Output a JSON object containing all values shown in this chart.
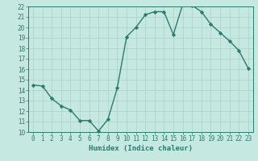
{
  "xlabel": "Humidex (Indice chaleur)",
  "x": [
    0,
    1,
    2,
    3,
    4,
    5,
    6,
    7,
    8,
    9,
    10,
    11,
    12,
    13,
    14,
    15,
    16,
    17,
    18,
    19,
    20,
    21,
    22,
    23
  ],
  "y": [
    14.5,
    14.4,
    13.2,
    12.5,
    12.1,
    11.1,
    11.1,
    10.1,
    11.2,
    14.2,
    19.1,
    20.0,
    21.2,
    21.5,
    21.5,
    19.3,
    22.2,
    22.1,
    21.5,
    20.3,
    19.5,
    18.7,
    17.8,
    16.1
  ],
  "line_color": "#2d7b6e",
  "marker": "D",
  "marker_size": 2.2,
  "bg_color": "#c5e8e0",
  "grid_color": "#aad0c6",
  "axes_color": "#2d7b6e",
  "ylim": [
    10,
    22
  ],
  "xlim": [
    -0.5,
    23.5
  ],
  "yticks": [
    10,
    11,
    12,
    13,
    14,
    15,
    16,
    17,
    18,
    19,
    20,
    21,
    22
  ],
  "xticks": [
    0,
    1,
    2,
    3,
    4,
    5,
    6,
    7,
    8,
    9,
    10,
    11,
    12,
    13,
    14,
    15,
    16,
    17,
    18,
    19,
    20,
    21,
    22,
    23
  ],
  "tick_fontsize": 5.5,
  "label_fontsize": 6.5,
  "line_width": 1.0
}
